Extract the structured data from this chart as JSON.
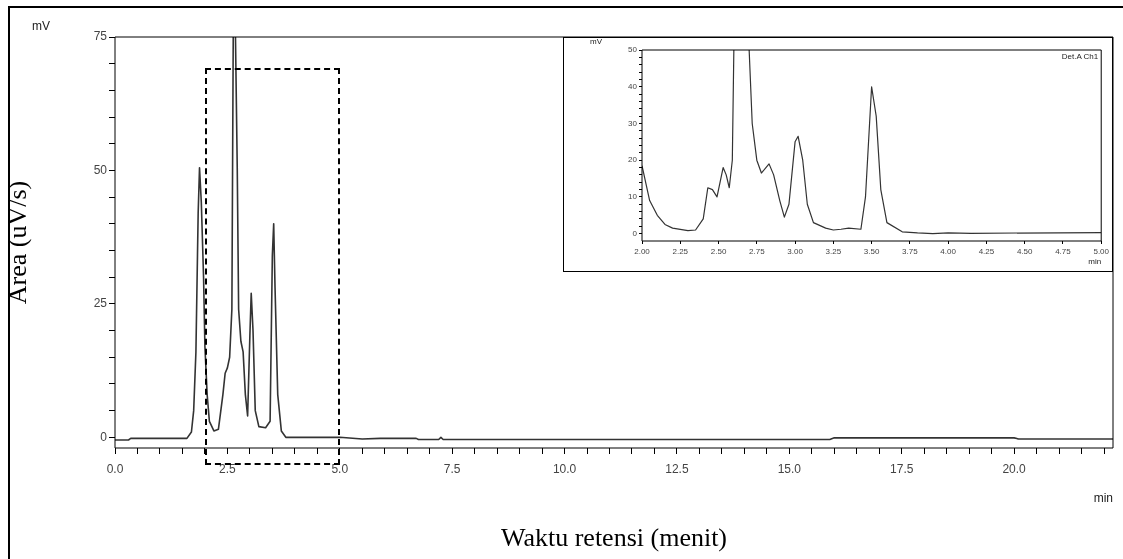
{
  "chart_data": [
    {
      "type": "line",
      "xlabel": "Waktu retensi (menit)",
      "ylabel": "Area (uV/s)",
      "annotations": [
        "mV",
        "min"
      ],
      "marker": "none",
      "xlim": [
        0,
        22.2
      ],
      "ylim": [
        -2,
        75
      ],
      "xticks": [
        {
          "value": 0,
          "label": "0.0"
        },
        {
          "value": 0.5,
          "label": null
        },
        {
          "value": 1,
          "label": null
        },
        {
          "value": 1.5,
          "label": null
        },
        {
          "value": 2,
          "label": null
        },
        {
          "value": 2.5,
          "label": "2.5"
        },
        {
          "value": 3,
          "label": null
        },
        {
          "value": 3.5,
          "label": null
        },
        {
          "value": 4,
          "label": null
        },
        {
          "value": 4.5,
          "label": null
        },
        {
          "value": 5,
          "label": "5.0"
        },
        {
          "value": 5.5,
          "label": null
        },
        {
          "value": 6,
          "label": null
        },
        {
          "value": 6.5,
          "label": null
        },
        {
          "value": 7,
          "label": null
        },
        {
          "value": 7.5,
          "label": "7.5"
        },
        {
          "value": 8,
          "label": null
        },
        {
          "value": 8.5,
          "label": null
        },
        {
          "value": 9,
          "label": null
        },
        {
          "value": 9.5,
          "label": null
        },
        {
          "value": 10,
          "label": "10.0"
        },
        {
          "value": 10.5,
          "label": null
        },
        {
          "value": 11,
          "label": null
        },
        {
          "value": 11.5,
          "label": null
        },
        {
          "value": 12,
          "label": null
        },
        {
          "value": 12.5,
          "label": "12.5"
        },
        {
          "value": 13,
          "label": null
        },
        {
          "value": 13.5,
          "label": null
        },
        {
          "value": 14,
          "label": null
        },
        {
          "value": 14.5,
          "label": null
        },
        {
          "value": 15,
          "label": "15.0"
        },
        {
          "value": 15.5,
          "label": null
        },
        {
          "value": 16,
          "label": null
        },
        {
          "value": 16.5,
          "label": null
        },
        {
          "value": 17,
          "label": null
        },
        {
          "value": 17.5,
          "label": "17.5"
        },
        {
          "value": 18,
          "label": null
        },
        {
          "value": 18.5,
          "label": null
        },
        {
          "value": 19,
          "label": null
        },
        {
          "value": 19.5,
          "label": null
        },
        {
          "value": 20,
          "label": "20.0"
        },
        {
          "value": 20.5,
          "label": null
        },
        {
          "value": 21,
          "label": null
        },
        {
          "value": 21.5,
          "label": null
        },
        {
          "value": 22,
          "label": null
        }
      ],
      "yticks": [
        0,
        {
          "value": 5,
          "label": null
        },
        {
          "value": 10,
          "label": null
        },
        {
          "value": 15,
          "label": null
        },
        {
          "value": 20,
          "label": null
        },
        25,
        {
          "value": 30,
          "label": null
        },
        {
          "value": 35,
          "label": null
        },
        {
          "value": 40,
          "label": null
        },
        {
          "value": 45,
          "label": null
        },
        50,
        {
          "value": 55,
          "label": null
        },
        {
          "value": 60,
          "label": null
        },
        {
          "value": 65,
          "label": null
        },
        {
          "value": 70,
          "label": null
        },
        75
      ],
      "series": [
        {
          "color": "#333333",
          "x": [
            0,
            0.3,
            0.35,
            0.5,
            1.6,
            1.7,
            1.75,
            1.8,
            1.85,
            1.88,
            1.92,
            1.97,
            2.0,
            2.05,
            2.1,
            2.2,
            2.3,
            2.4,
            2.45,
            2.5,
            2.55,
            2.6,
            2.63,
            2.655,
            2.68,
            2.72,
            2.75,
            2.8,
            2.85,
            2.9,
            2.95,
            3.0,
            3.03,
            3.07,
            3.12,
            3.2,
            3.35,
            3.45,
            3.5,
            3.53,
            3.56,
            3.62,
            3.7,
            3.8,
            5.0,
            5.5,
            5.9,
            6.7,
            6.75,
            7.2,
            7.25,
            7.3,
            15.9,
            16.0,
            20.0,
            20.1,
            22.2
          ],
          "values": [
            -0.5,
            -0.5,
            -0.2,
            -0.2,
            -0.2,
            1,
            5,
            16,
            42,
            50.5,
            44,
            30,
            17,
            8,
            3,
            1.2,
            1.5,
            8,
            12,
            13,
            15,
            24,
            75,
            null,
            75,
            50,
            24,
            18,
            16,
            8,
            4,
            19,
            27,
            20,
            5,
            2,
            1.8,
            3,
            34,
            40,
            28,
            8,
            1.2,
            0,
            0,
            -0.3,
            -0.2,
            -0.2,
            -0.4,
            -0.4,
            0,
            -0.4,
            -0.4,
            -0.1,
            -0.1,
            -0.3,
            -0.3
          ]
        }
      ]
    },
    {
      "type": "line",
      "annotations": [
        "mV",
        "min",
        "Det.A Ch1"
      ],
      "marker": "none",
      "xlim": [
        2,
        5
      ],
      "ylim": [
        -2,
        50
      ],
      "xticks": [
        {
          "value": 2,
          "label": "2.00"
        },
        {
          "value": 2.25,
          "label": "2.25"
        },
        {
          "value": 2.5,
          "label": "2.50"
        },
        {
          "value": 2.75,
          "label": "2.75"
        },
        {
          "value": 3,
          "label": "3.00"
        },
        {
          "value": 3.25,
          "label": "3.25"
        },
        {
          "value": 3.5,
          "label": "3.50"
        },
        {
          "value": 3.75,
          "label": "3.75"
        },
        {
          "value": 4,
          "label": "4.00"
        },
        {
          "value": 4.25,
          "label": "4.25"
        },
        {
          "value": 4.5,
          "label": "4.50"
        },
        {
          "value": 4.75,
          "label": "4.75"
        },
        {
          "value": 5,
          "label": "5.00"
        }
      ],
      "yticks": [
        0,
        {
          "value": 2,
          "label": null
        },
        {
          "value": 4,
          "label": null
        },
        {
          "value": 6,
          "label": null
        },
        {
          "value": 8,
          "label": null
        },
        10,
        {
          "value": 12,
          "label": null
        },
        {
          "value": 14,
          "label": null
        },
        {
          "value": 16,
          "label": null
        },
        {
          "value": 18,
          "label": null
        },
        20,
        {
          "value": 22,
          "label": null
        },
        {
          "value": 24,
          "label": null
        },
        {
          "value": 26,
          "label": null
        },
        {
          "value": 28,
          "label": null
        },
        30,
        {
          "value": 32,
          "label": null
        },
        {
          "value": 34,
          "label": null
        },
        {
          "value": 36,
          "label": null
        },
        {
          "value": 38,
          "label": null
        },
        40,
        {
          "value": 42,
          "label": null
        },
        {
          "value": 44,
          "label": null
        },
        {
          "value": 46,
          "label": null
        },
        {
          "value": 48,
          "label": null
        },
        50
      ],
      "series": [
        {
          "color": "#333333",
          "x": [
            2.0,
            2.05,
            2.1,
            2.15,
            2.2,
            2.3,
            2.35,
            2.4,
            2.43,
            2.46,
            2.49,
            2.53,
            2.55,
            2.57,
            2.59,
            2.6,
            2.65,
            2.7,
            2.72,
            2.75,
            2.78,
            2.83,
            2.86,
            2.9,
            2.93,
            2.96,
            3.0,
            3.02,
            3.05,
            3.08,
            3.12,
            3.2,
            3.25,
            3.3,
            3.35,
            3.43,
            3.46,
            3.5,
            3.53,
            3.56,
            3.6,
            3.7,
            3.8,
            3.9,
            4.0,
            4.15,
            5.0
          ],
          "values": [
            18.5,
            9,
            5,
            2.5,
            1.5,
            0.8,
            1,
            4,
            12.5,
            12,
            10,
            18,
            16,
            12.5,
            20,
            50,
            null,
            50,
            30,
            20,
            16.5,
            19,
            16,
            9,
            4.5,
            8,
            25,
            26.5,
            20,
            8,
            3,
            1.5,
            1,
            1.2,
            1.5,
            1.2,
            10,
            40,
            32,
            12,
            3,
            0.5,
            0.2,
            0,
            0.2,
            0.1,
            0.3
          ]
        }
      ]
    }
  ]
}
